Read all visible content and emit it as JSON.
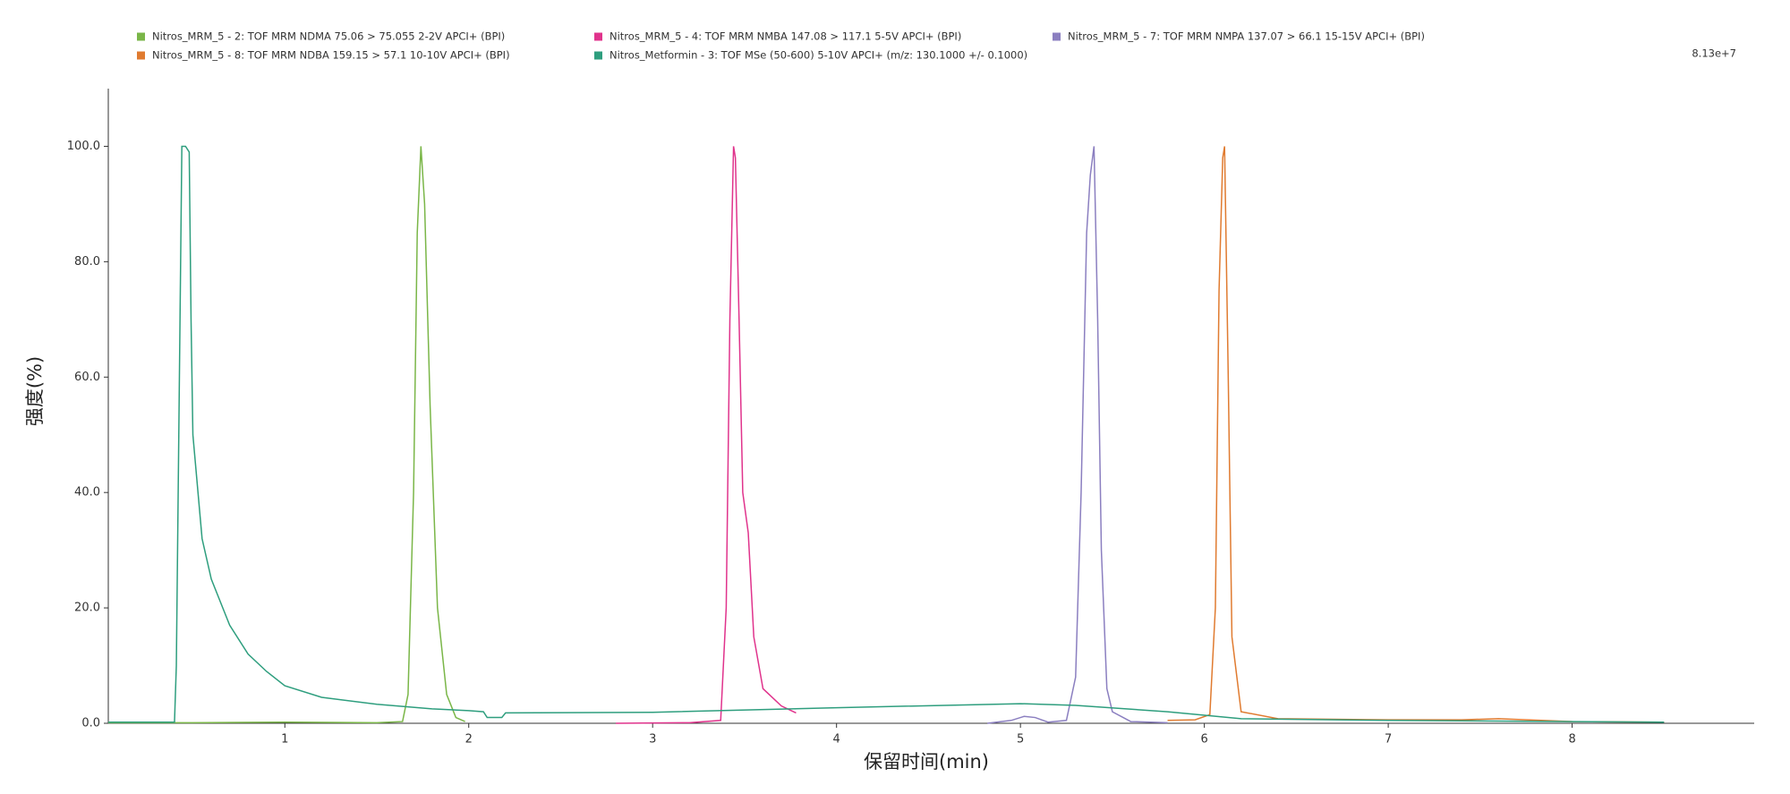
{
  "chart_data": {
    "type": "line",
    "x_label": "保留时间(min)",
    "y_label": "强度(%)",
    "annotations": [
      "8.13e+7"
    ],
    "xlim": [
      0.04,
      8.99
    ],
    "ylim": [
      0,
      110
    ],
    "xticks": [
      1,
      2,
      3,
      4,
      5,
      6,
      7,
      8
    ],
    "yticks": [
      {
        "value": 0,
        "label": "0.0"
      },
      {
        "value": 20,
        "label": "20.0"
      },
      {
        "value": 40,
        "label": "40.0"
      },
      {
        "value": 60,
        "label": "60.0"
      },
      {
        "value": 80,
        "label": "80.0"
      },
      {
        "value": 100,
        "label": "100.0"
      }
    ],
    "grid": false,
    "legend": "top",
    "series": [
      {
        "name": "Nitros_MRM_5 - 2: TOF MRM NDMA 75.06 > 75.055 2-2V APCI+ (BPI)",
        "color": "#7ab648",
        "x": [
          0.04,
          0.5,
          1.0,
          1.5,
          1.64,
          1.67,
          1.7,
          1.72,
          1.74,
          1.76,
          1.79,
          1.83,
          1.88,
          1.93,
          1.98
        ],
        "values": [
          0.1,
          0.1,
          0.2,
          0.1,
          0.3,
          5,
          40,
          85,
          100,
          90,
          55,
          20,
          5,
          1,
          0.3
        ]
      },
      {
        "name": "Nitros_MRM_5 - 4: TOF MRM NMBA 147.08 > 117.1 5-5V APCI+ (BPI)",
        "color": "#e0338c",
        "x": [
          2.8,
          3.2,
          3.37,
          3.4,
          3.42,
          3.44,
          3.45,
          3.47,
          3.49,
          3.52,
          3.55,
          3.6,
          3.7,
          3.78
        ],
        "values": [
          0,
          0.1,
          0.5,
          20,
          70,
          100,
          98,
          70,
          40,
          33,
          15,
          6,
          3,
          1.8
        ]
      },
      {
        "name": "Nitros_MRM_5 - 7: TOF MRM NMPA 137.07 > 66.1 15-15V APCI+ (BPI)",
        "color": "#8b7fc0",
        "x": [
          4.82,
          4.95,
          5.02,
          5.08,
          5.15,
          5.25,
          5.3,
          5.33,
          5.36,
          5.38,
          5.4,
          5.42,
          5.44,
          5.47,
          5.5,
          5.6,
          5.8
        ],
        "values": [
          0,
          0.5,
          1.2,
          1,
          0.2,
          0.5,
          8,
          40,
          85,
          95,
          100,
          70,
          30,
          6,
          2,
          0.3,
          0.1
        ]
      },
      {
        "name": "Nitros_MRM_5 - 8: TOF MRM NDBA 159.15 > 57.1 10-10V APCI+ (BPI)",
        "color": "#e07b30",
        "x": [
          5.8,
          5.95,
          6.03,
          6.06,
          6.08,
          6.1,
          6.11,
          6.13,
          6.15,
          6.2,
          6.4,
          7,
          7.4,
          7.6,
          8,
          8.5
        ],
        "values": [
          0.5,
          0.6,
          1.5,
          20,
          75,
          98,
          100,
          60,
          15,
          2,
          0.8,
          0.6,
          0.6,
          0.8,
          0.3,
          0.2
        ]
      },
      {
        "name": "Nitros_Metformin - 3: TOF MSe (50-600) 5-10V APCI+ (m/z: 130.1000 +/- 0.1000)",
        "color": "#2e9e7e",
        "x": [
          0.04,
          0.4,
          0.41,
          0.44,
          0.46,
          0.48,
          0.49,
          0.5,
          0.55,
          0.6,
          0.7,
          0.8,
          0.9,
          1.0,
          1.2,
          1.5,
          1.8,
          2.0,
          2.08,
          2.1,
          2.18,
          2.2,
          3,
          4,
          5,
          5.3,
          5.8,
          6.2,
          7,
          8,
          8.5
        ],
        "values": [
          0.2,
          0.2,
          10,
          100,
          100,
          99,
          70,
          50,
          32,
          25,
          17,
          12,
          9,
          6.5,
          4.5,
          3.3,
          2.5,
          2.2,
          2,
          1,
          1,
          1.8,
          1.9,
          2.7,
          3.4,
          3.1,
          2,
          0.8,
          0.5,
          0.3,
          0.2
        ]
      }
    ]
  }
}
